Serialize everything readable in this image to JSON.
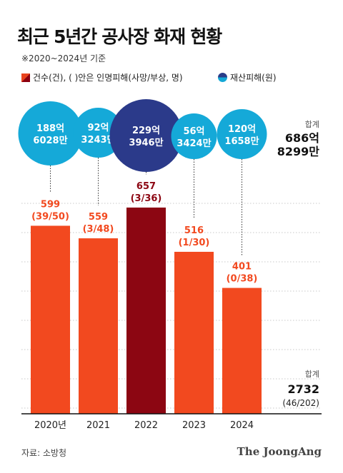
{
  "title": "최근 5년간 공사장 화재 현황",
  "subtitle": "※2020~2024년 기준",
  "legend": {
    "cases": "건수(건), ( )안은 인명피해(사망/부상, 명)",
    "property": "재산피해(원)"
  },
  "totals": {
    "property_label": "합계",
    "property_value": "686억\n8299만",
    "cases_label": "합계",
    "cases_value": "2732",
    "cases_casualties": "(46/202)"
  },
  "source": "자료: 소방청",
  "brand": "The JoongAng",
  "colors": {
    "bar": "#f2491f",
    "bar_highlight": "#8c0612",
    "bar_label": "#f2491f",
    "bubble": "#15a9d8",
    "bubble_highlight": "#2b3a8a",
    "grid": "#c8c8c8"
  },
  "chart_data": {
    "type": "bar",
    "categories": [
      "2020년",
      "2021",
      "2022",
      "2023",
      "2024"
    ],
    "cases": [
      599,
      559,
      657,
      516,
      401
    ],
    "casualties": [
      "(39/50)",
      "(3/48)",
      "(3/36)",
      "(1/30)",
      "(0/38)"
    ],
    "property_damage": [
      "188억 6028만",
      "92억 3243만",
      "229억 3946만",
      "56억 3424만",
      "120억 1658만"
    ],
    "property_damage_won": [
      18860280000,
      9232430000,
      22939460000,
      5634240000,
      12016580000
    ],
    "highlight_index": 2,
    "ylim": [
      0,
      750
    ]
  }
}
